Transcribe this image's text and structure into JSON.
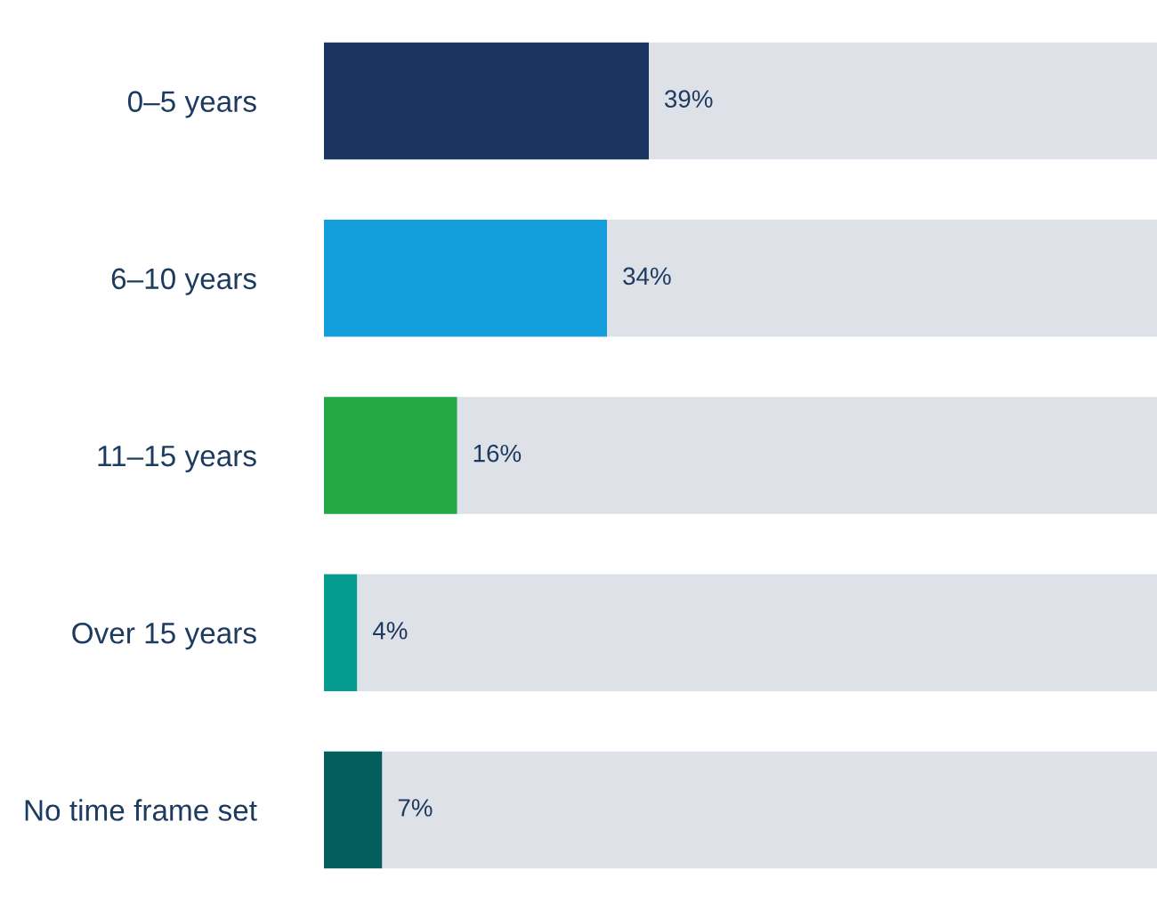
{
  "chart_data": {
    "type": "bar",
    "orientation": "horizontal",
    "stacked": true,
    "categories": [
      "0–5 years",
      "6–10 years",
      "11–15 years",
      "Over 15 years",
      "No time frame set"
    ],
    "series": [
      {
        "colors": [
          "#1a3660",
          "#139dda",
          "#22a845",
          "#069b8f",
          "#045f5c"
        ],
        "values": [
          39,
          34,
          16,
          4,
          7
        ],
        "value_labels": [
          "39%",
          "34%",
          "16%",
          "4%",
          "7%"
        ]
      },
      {
        "color": "#dfe1e8",
        "values": [
          61,
          66,
          84,
          96,
          93
        ]
      }
    ],
    "grid": false,
    "legend": false,
    "tick_labels": "y"
  }
}
